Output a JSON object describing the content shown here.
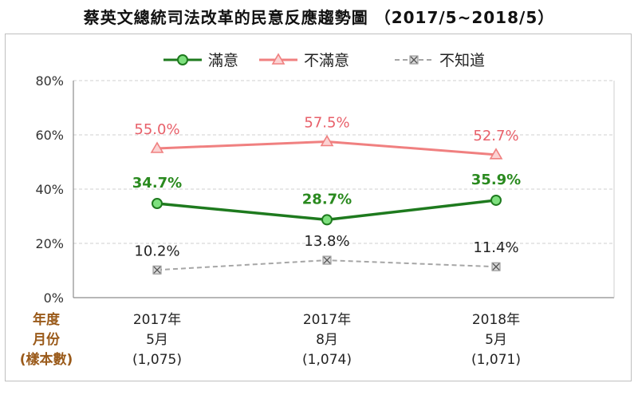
{
  "title": "蔡英文總統司法改革的民意反應趨勢圖 （2017/5~2018/5）",
  "row_headers": [
    "年度",
    "月份",
    "(樣本數)"
  ],
  "chart_data": {
    "type": "line",
    "categories": [
      {
        "year": "2017年",
        "month": "5月",
        "sample": "(1,075)"
      },
      {
        "year": "2017年",
        "month": "8月",
        "sample": "(1,074)"
      },
      {
        "year": "2018年",
        "month": "5月",
        "sample": "(1,071)"
      }
    ],
    "ylim": [
      0,
      80
    ],
    "yticks": [
      0,
      20,
      40,
      60,
      80
    ],
    "ytick_labels": [
      "0%",
      "20%",
      "40%",
      "60%",
      "80%"
    ],
    "grid": true,
    "legend_position": "top",
    "series": [
      {
        "name": "滿意",
        "values": [
          34.7,
          28.7,
          35.9
        ],
        "labels": [
          "34.7%",
          "28.7%",
          "35.9%"
        ],
        "color": "#1e7a1e",
        "label_color": "#2a8a1f",
        "marker": "circle",
        "marker_fill": "#7ee07e",
        "dash": false
      },
      {
        "name": "不滿意",
        "values": [
          55.0,
          57.5,
          52.7
        ],
        "labels": [
          "55.0%",
          "57.5%",
          "52.7%"
        ],
        "color": "#f08080",
        "label_color": "#e8606a",
        "marker": "triangle",
        "marker_fill": "#fbd3d3",
        "dash": false
      },
      {
        "name": "不知道",
        "values": [
          10.2,
          13.8,
          11.4
        ],
        "labels": [
          "10.2%",
          "13.8%",
          "11.4%"
        ],
        "color": "#a6a6a6",
        "label_color": "#222222",
        "marker": "x-square",
        "marker_fill": "#d9d9d9",
        "dash": true
      }
    ]
  }
}
